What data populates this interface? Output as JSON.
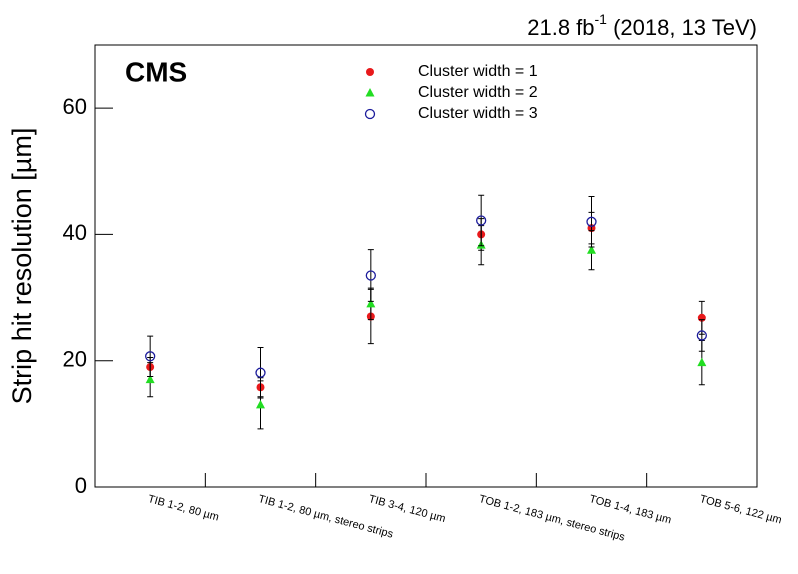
{
  "chart_data": {
    "type": "errorbar",
    "annotations": {
      "experiment": "CMS",
      "lumi": "21.8 fb",
      "lumi_exponent": "-1",
      "conditions": " (2018, 13 TeV)"
    },
    "y_label": "Strip hit resolution [µm]",
    "categories": [
      "TIB 1-2, 80 µm",
      "TIB 1-2, 80 µm, stereo strips",
      "TIB 3-4, 120 µm",
      "TOB 1-2, 183 µm, stereo strips",
      "TOB 1-4, 183 µm",
      "TOB 5-6, 122 µm"
    ],
    "series": [
      {
        "name": "Cluster width = 1",
        "color": "#e8191b",
        "marker": "filled-circle",
        "values": [
          19,
          15.8,
          27,
          40,
          41,
          26.8
        ],
        "errors": [
          1.5,
          1.5,
          4.3,
          2.5,
          2.5,
          2.6
        ]
      },
      {
        "name": "Cluster width = 2",
        "color": "#22dd22",
        "marker": "triangle",
        "values": [
          17,
          13,
          29,
          38.3,
          37.5,
          19.7
        ],
        "errors": [
          2.7,
          3.8,
          2.5,
          3.1,
          3.1,
          3.5
        ]
      },
      {
        "name": "Cluster width = 3",
        "color": "#1c1c9c",
        "marker": "open-circle",
        "values": [
          20.7,
          18.1,
          33.5,
          42.2,
          42,
          24
        ],
        "errors": [
          3.2,
          4,
          4.1,
          4,
          4,
          2.5
        ]
      }
    ],
    "ylim": [
      0,
      70
    ],
    "yticks": [
      0,
      20,
      40,
      60
    ],
    "legend": "top-center"
  }
}
